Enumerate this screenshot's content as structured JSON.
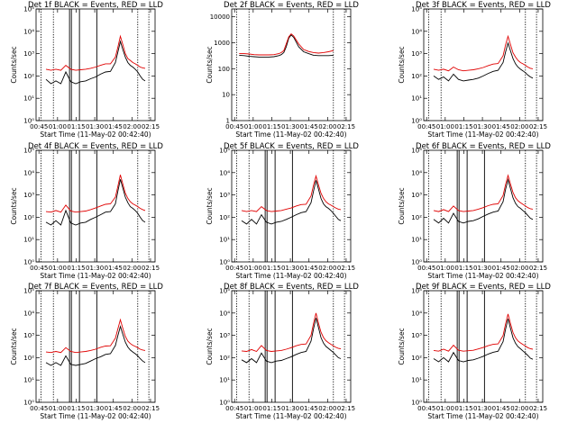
{
  "xlabel": "Start Time (11-May-02 00:42:40)",
  "ylabel": "Counts/sec",
  "x_tick_labels": [
    "00:45",
    "01:00",
    "01:15",
    "01:30",
    "01:45",
    "02:00",
    "02:15"
  ],
  "y_tick_labels_log": [
    "10⁰",
    "10¹",
    "10²",
    "10³",
    "10⁴",
    "10⁵"
  ],
  "y_tick_labels_panel2": [
    "1",
    "10",
    "100",
    "1000",
    "10000"
  ],
  "colors": {
    "events": "#000000",
    "lld": "#e00000",
    "axes": "#000000"
  },
  "chart_data": [
    {
      "type": "line",
      "title": "Det 1f BLACK = Events, RED = LLD",
      "x_unit": "minutes after 00:42:40",
      "xlim": [
        0,
        96
      ],
      "yscale": "log",
      "ylim": [
        1,
        100000
      ],
      "x": [
        8,
        12,
        16,
        20,
        24,
        28,
        32,
        36,
        40,
        44,
        48,
        52,
        56,
        60,
        64,
        66,
        68,
        70,
        72,
        74,
        76,
        78,
        80,
        82,
        84,
        86,
        88
      ],
      "series": [
        {
          "name": "Events",
          "values": [
            70,
            45,
            60,
            45,
            150,
            55,
            45,
            55,
            60,
            75,
            90,
            120,
            150,
            160,
            400,
            1200,
            3500,
            1500,
            700,
            400,
            300,
            250,
            200,
            150,
            100,
            70,
            60
          ]
        },
        {
          "name": "LLD",
          "values": [
            200,
            180,
            200,
            180,
            300,
            200,
            180,
            190,
            200,
            220,
            250,
            300,
            350,
            350,
            700,
            2000,
            6000,
            2500,
            1000,
            600,
            500,
            400,
            350,
            300,
            250,
            230,
            220
          ]
        }
      ],
      "vlines_solid": [
        27,
        28.5,
        35,
        49
      ],
      "vlines_dotted": [
        4,
        14,
        82,
        91
      ]
    },
    {
      "type": "line",
      "title": "Det 2f BLACK = Events, RED = LLD",
      "x_unit": "minutes after 00:42:40",
      "xlim": [
        0,
        96
      ],
      "yscale": "log",
      "ylim": [
        1,
        20000
      ],
      "x": [
        6,
        10,
        14,
        18,
        22,
        26,
        30,
        34,
        38,
        40,
        42,
        44,
        46,
        48,
        50,
        54,
        58,
        62,
        66,
        70,
        74,
        78,
        82
      ],
      "series": [
        {
          "name": "Events",
          "values": [
            330,
            320,
            300,
            290,
            280,
            280,
            280,
            290,
            320,
            350,
            420,
            700,
            1500,
            2000,
            1600,
            700,
            450,
            380,
            330,
            320,
            320,
            320,
            330
          ]
        },
        {
          "name": "LLD",
          "values": [
            380,
            380,
            370,
            350,
            340,
            340,
            340,
            350,
            380,
            420,
            500,
            900,
            1700,
            2200,
            1800,
            900,
            550,
            460,
            420,
            400,
            420,
            450,
            500
          ]
        }
      ],
      "vlines_solid": [],
      "vlines_dotted": [
        4,
        14,
        82,
        91
      ]
    },
    {
      "type": "line",
      "title": "Det 3f BLACK = Events, RED = LLD",
      "x_unit": "minutes after 00:42:40",
      "xlim": [
        0,
        96
      ],
      "yscale": "log",
      "ylim": [
        1,
        100000
      ],
      "x": [
        8,
        12,
        16,
        20,
        24,
        28,
        32,
        36,
        40,
        44,
        48,
        52,
        56,
        60,
        64,
        66,
        68,
        70,
        72,
        74,
        76,
        78,
        80,
        82,
        84,
        86,
        88
      ],
      "series": [
        {
          "name": "Events",
          "values": [
            100,
            70,
            90,
            60,
            120,
            70,
            60,
            65,
            70,
            80,
            100,
            130,
            160,
            180,
            400,
            1200,
            3000,
            1300,
            600,
            350,
            250,
            200,
            170,
            140,
            110,
            90,
            80
          ]
        },
        {
          "name": "LLD",
          "values": [
            200,
            180,
            200,
            170,
            250,
            190,
            170,
            180,
            190,
            210,
            240,
            290,
            340,
            360,
            800,
            2500,
            6000,
            2500,
            1100,
            700,
            500,
            400,
            350,
            300,
            250,
            220,
            210
          ]
        }
      ],
      "vlines_solid": [],
      "vlines_dotted": [
        4,
        14,
        82,
        91
      ]
    },
    {
      "type": "line",
      "title": "Det 4f BLACK = Events, RED = LLD",
      "x_unit": "minutes after 00:42:40",
      "xlim": [
        0,
        96
      ],
      "yscale": "log",
      "ylim": [
        1,
        100000
      ],
      "x": [
        8,
        12,
        16,
        20,
        24,
        28,
        32,
        36,
        40,
        44,
        48,
        52,
        56,
        60,
        64,
        66,
        68,
        70,
        72,
        74,
        76,
        78,
        80,
        82,
        84,
        86,
        88
      ],
      "series": [
        {
          "name": "Events",
          "values": [
            60,
            45,
            70,
            45,
            200,
            55,
            45,
            55,
            60,
            80,
            100,
            130,
            170,
            180,
            400,
            1500,
            5000,
            2000,
            800,
            450,
            300,
            250,
            200,
            150,
            100,
            70,
            60
          ]
        },
        {
          "name": "LLD",
          "values": [
            180,
            170,
            200,
            170,
            350,
            190,
            170,
            180,
            190,
            220,
            260,
            320,
            380,
            400,
            800,
            2500,
            8000,
            3000,
            1200,
            700,
            500,
            400,
            350,
            300,
            250,
            220,
            200
          ]
        }
      ],
      "vlines_solid": [
        27,
        28.5,
        35,
        49
      ],
      "vlines_dotted": [
        4,
        14,
        82,
        91
      ]
    },
    {
      "type": "line",
      "title": "Det 5f BLACK = Events, RED = LLD",
      "x_unit": "minutes after 00:42:40",
      "xlim": [
        0,
        96
      ],
      "yscale": "log",
      "ylim": [
        1,
        100000
      ],
      "x": [
        8,
        12,
        16,
        20,
        24,
        28,
        32,
        36,
        40,
        44,
        48,
        52,
        56,
        60,
        64,
        66,
        68,
        70,
        72,
        74,
        76,
        78,
        80,
        82,
        84,
        86,
        88
      ],
      "series": [
        {
          "name": "Events",
          "values": [
            70,
            50,
            80,
            50,
            130,
            60,
            50,
            60,
            65,
            80,
            100,
            130,
            160,
            180,
            450,
            1500,
            4500,
            1800,
            700,
            400,
            300,
            250,
            200,
            150,
            110,
            80,
            70
          ]
        },
        {
          "name": "LLD",
          "values": [
            200,
            180,
            200,
            180,
            300,
            200,
            180,
            190,
            200,
            230,
            260,
            320,
            370,
            380,
            900,
            2800,
            7000,
            2800,
            1200,
            700,
            500,
            400,
            350,
            300,
            260,
            230,
            220
          ]
        }
      ],
      "vlines_solid": [
        27,
        28.5,
        35,
        49
      ],
      "vlines_dotted": [
        4,
        14,
        82,
        91
      ]
    },
    {
      "type": "line",
      "title": "Det 6f BLACK = Events, RED = LLD",
      "x_unit": "minutes after 00:42:40",
      "xlim": [
        0,
        96
      ],
      "yscale": "log",
      "ylim": [
        1,
        100000
      ],
      "x": [
        8,
        12,
        16,
        20,
        24,
        28,
        32,
        36,
        40,
        44,
        48,
        52,
        56,
        60,
        64,
        66,
        68,
        70,
        72,
        74,
        76,
        78,
        80,
        82,
        84,
        86,
        88
      ],
      "series": [
        {
          "name": "Events",
          "values": [
            80,
            55,
            90,
            55,
            150,
            65,
            55,
            65,
            70,
            85,
            110,
            140,
            170,
            190,
            500,
            1800,
            4800,
            1900,
            750,
            420,
            300,
            250,
            200,
            160,
            120,
            90,
            80
          ]
        },
        {
          "name": "LLD",
          "values": [
            200,
            180,
            220,
            180,
            320,
            200,
            180,
            190,
            200,
            230,
            270,
            330,
            380,
            400,
            950,
            3000,
            7500,
            3000,
            1300,
            750,
            550,
            450,
            380,
            320,
            270,
            240,
            230
          ]
        }
      ],
      "vlines_solid": [
        27,
        28.5,
        35,
        49
      ],
      "vlines_dotted": [
        4,
        14,
        82,
        91
      ]
    },
    {
      "type": "line",
      "title": "Det 7f BLACK = Events, RED = LLD",
      "x_unit": "minutes after 00:42:40",
      "xlim": [
        0,
        96
      ],
      "yscale": "log",
      "ylim": [
        1,
        100000
      ],
      "x": [
        8,
        12,
        16,
        20,
        24,
        28,
        32,
        36,
        40,
        44,
        48,
        52,
        56,
        60,
        64,
        66,
        68,
        70,
        72,
        74,
        76,
        78,
        80,
        82,
        84,
        86,
        88
      ],
      "series": [
        {
          "name": "Events",
          "values": [
            60,
            45,
            60,
            45,
            120,
            50,
            45,
            50,
            55,
            70,
            90,
            110,
            140,
            150,
            350,
            1000,
            2500,
            1100,
            500,
            300,
            220,
            180,
            150,
            120,
            90,
            70,
            60
          ]
        },
        {
          "name": "LLD",
          "values": [
            180,
            170,
            190,
            170,
            280,
            190,
            170,
            180,
            190,
            210,
            240,
            290,
            330,
            340,
            750,
            2000,
            5000,
            2000,
            900,
            550,
            430,
            360,
            320,
            280,
            240,
            220,
            210
          ]
        }
      ],
      "vlines_solid": [
        27,
        28.5,
        35,
        49
      ],
      "vlines_dotted": [
        4,
        14,
        82,
        91
      ]
    },
    {
      "type": "line",
      "title": "Det 8f BLACK = Events, RED = LLD",
      "x_unit": "minutes after 00:42:40",
      "xlim": [
        0,
        96
      ],
      "yscale": "log",
      "ylim": [
        1,
        100000
      ],
      "x": [
        8,
        12,
        16,
        20,
        24,
        28,
        32,
        36,
        40,
        44,
        48,
        52,
        56,
        60,
        64,
        66,
        68,
        70,
        72,
        74,
        76,
        78,
        80,
        82,
        84,
        86,
        88
      ],
      "series": [
        {
          "name": "Events",
          "values": [
            80,
            60,
            90,
            60,
            160,
            70,
            60,
            70,
            75,
            90,
            110,
            140,
            170,
            190,
            550,
            2000,
            6000,
            2200,
            800,
            450,
            320,
            260,
            210,
            170,
            130,
            100,
            90
          ]
        },
        {
          "name": "LLD",
          "values": [
            200,
            190,
            230,
            190,
            350,
            210,
            190,
            200,
            210,
            240,
            280,
            340,
            390,
            410,
            1000,
            3500,
            10000,
            3500,
            1400,
            800,
            580,
            470,
            400,
            340,
            290,
            260,
            250
          ]
        }
      ],
      "vlines_solid": [
        27,
        28.5,
        35,
        49
      ],
      "vlines_dotted": [
        4,
        14,
        82,
        91
      ]
    },
    {
      "type": "line",
      "title": "Det 9f BLACK = Events, RED = LLD",
      "x_unit": "minutes after 00:42:40",
      "xlim": [
        0,
        96
      ],
      "yscale": "log",
      "ylim": [
        1,
        100000
      ],
      "x": [
        8,
        12,
        16,
        20,
        24,
        28,
        32,
        36,
        40,
        44,
        48,
        52,
        56,
        60,
        64,
        66,
        68,
        70,
        72,
        74,
        76,
        78,
        80,
        82,
        84,
        86,
        88
      ],
      "series": [
        {
          "name": "Events",
          "values": [
            90,
            65,
            100,
            65,
            170,
            75,
            65,
            75,
            80,
            95,
            115,
            145,
            175,
            195,
            520,
            1900,
            5500,
            2000,
            780,
            440,
            310,
            250,
            200,
            160,
            125,
            95,
            85
          ]
        },
        {
          "name": "LLD",
          "values": [
            210,
            195,
            240,
            195,
            360,
            215,
            195,
            205,
            215,
            245,
            285,
            345,
            395,
            415,
            980,
            3300,
            9000,
            3300,
            1350,
            780,
            560,
            460,
            390,
            330,
            280,
            250,
            240
          ]
        }
      ],
      "vlines_solid": [
        27,
        28.5,
        35,
        49
      ],
      "vlines_dotted": [
        4,
        14,
        82,
        91
      ]
    }
  ]
}
